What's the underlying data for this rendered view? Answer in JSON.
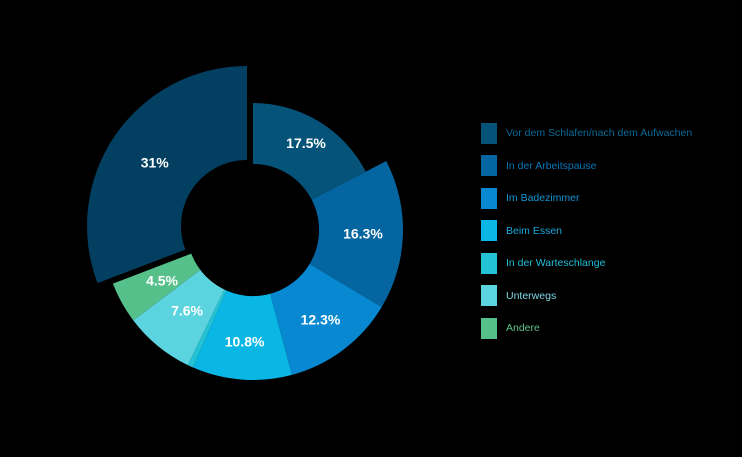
{
  "chart_data": {
    "type": "pie",
    "style": "exploded-donut",
    "title": "",
    "slices": [
      {
        "name": "Vor dem Schlafen/nach dem Aufwachen",
        "value": 17.5,
        "label": "17.5%",
        "color": "#055379",
        "text_color": "#0a6a96"
      },
      {
        "name": "In der Arbeitspause",
        "value": 16.3,
        "label": "16.3%",
        "color": "#0565a0",
        "text_color": "#0a78b8"
      },
      {
        "name": "Im Badezimmer",
        "value": 12.3,
        "label": "12.3%",
        "color": "#0888d0",
        "text_color": "#1496d6"
      },
      {
        "name": "Beim Essen",
        "value": 10.8,
        "label": "10.8%",
        "color": "#0ab6e3",
        "text_color": "#1aa9dd"
      },
      {
        "name": "In der Warteschlange",
        "value": 0.6,
        "label": "",
        "color": "#23c2d4",
        "text_color": "#20bfd8"
      },
      {
        "name": "Unterwegs",
        "value": 7.6,
        "label": "7.6%",
        "color": "#5cd4e0",
        "text_color": "#7fd8e4"
      },
      {
        "name": "Andere",
        "value": 4.5,
        "label": "4.5%",
        "color": "#56c08a",
        "text_color": "#5cc48a"
      },
      {
        "name": "",
        "value": 31,
        "label": "31%",
        "color": "#033f60",
        "text_color": "#0a5a86"
      }
    ],
    "legend_position": "right"
  }
}
